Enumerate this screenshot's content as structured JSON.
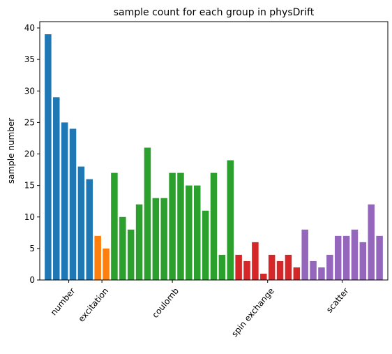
{
  "chart_data": {
    "type": "bar",
    "title": "sample count for each group in physDrift",
    "xlabel": "",
    "ylabel": "sample number",
    "ylim": [
      0,
      41
    ],
    "yticks": [
      0,
      5,
      10,
      15,
      20,
      25,
      30,
      35,
      40
    ],
    "groups": [
      {
        "name": "number",
        "color": "#1f77b4",
        "values": [
          39,
          29,
          25,
          24,
          18,
          16
        ]
      },
      {
        "name": "excitation",
        "color": "#ff7f0e",
        "values": [
          7,
          5
        ]
      },
      {
        "name": "coulomb",
        "color": "#2ca02c",
        "values": [
          17,
          10,
          8,
          12,
          21,
          13,
          13,
          17,
          17,
          15,
          15,
          11,
          17,
          4,
          19
        ]
      },
      {
        "name": "spin exchange",
        "color": "#d62728",
        "values": [
          4,
          3,
          6,
          1,
          4,
          3,
          4,
          2
        ]
      },
      {
        "name": "scatter",
        "color": "#9467bd",
        "values": [
          8,
          3,
          2,
          4,
          7,
          7,
          8,
          6,
          12,
          7
        ]
      }
    ],
    "legend": "none",
    "grid": false
  }
}
